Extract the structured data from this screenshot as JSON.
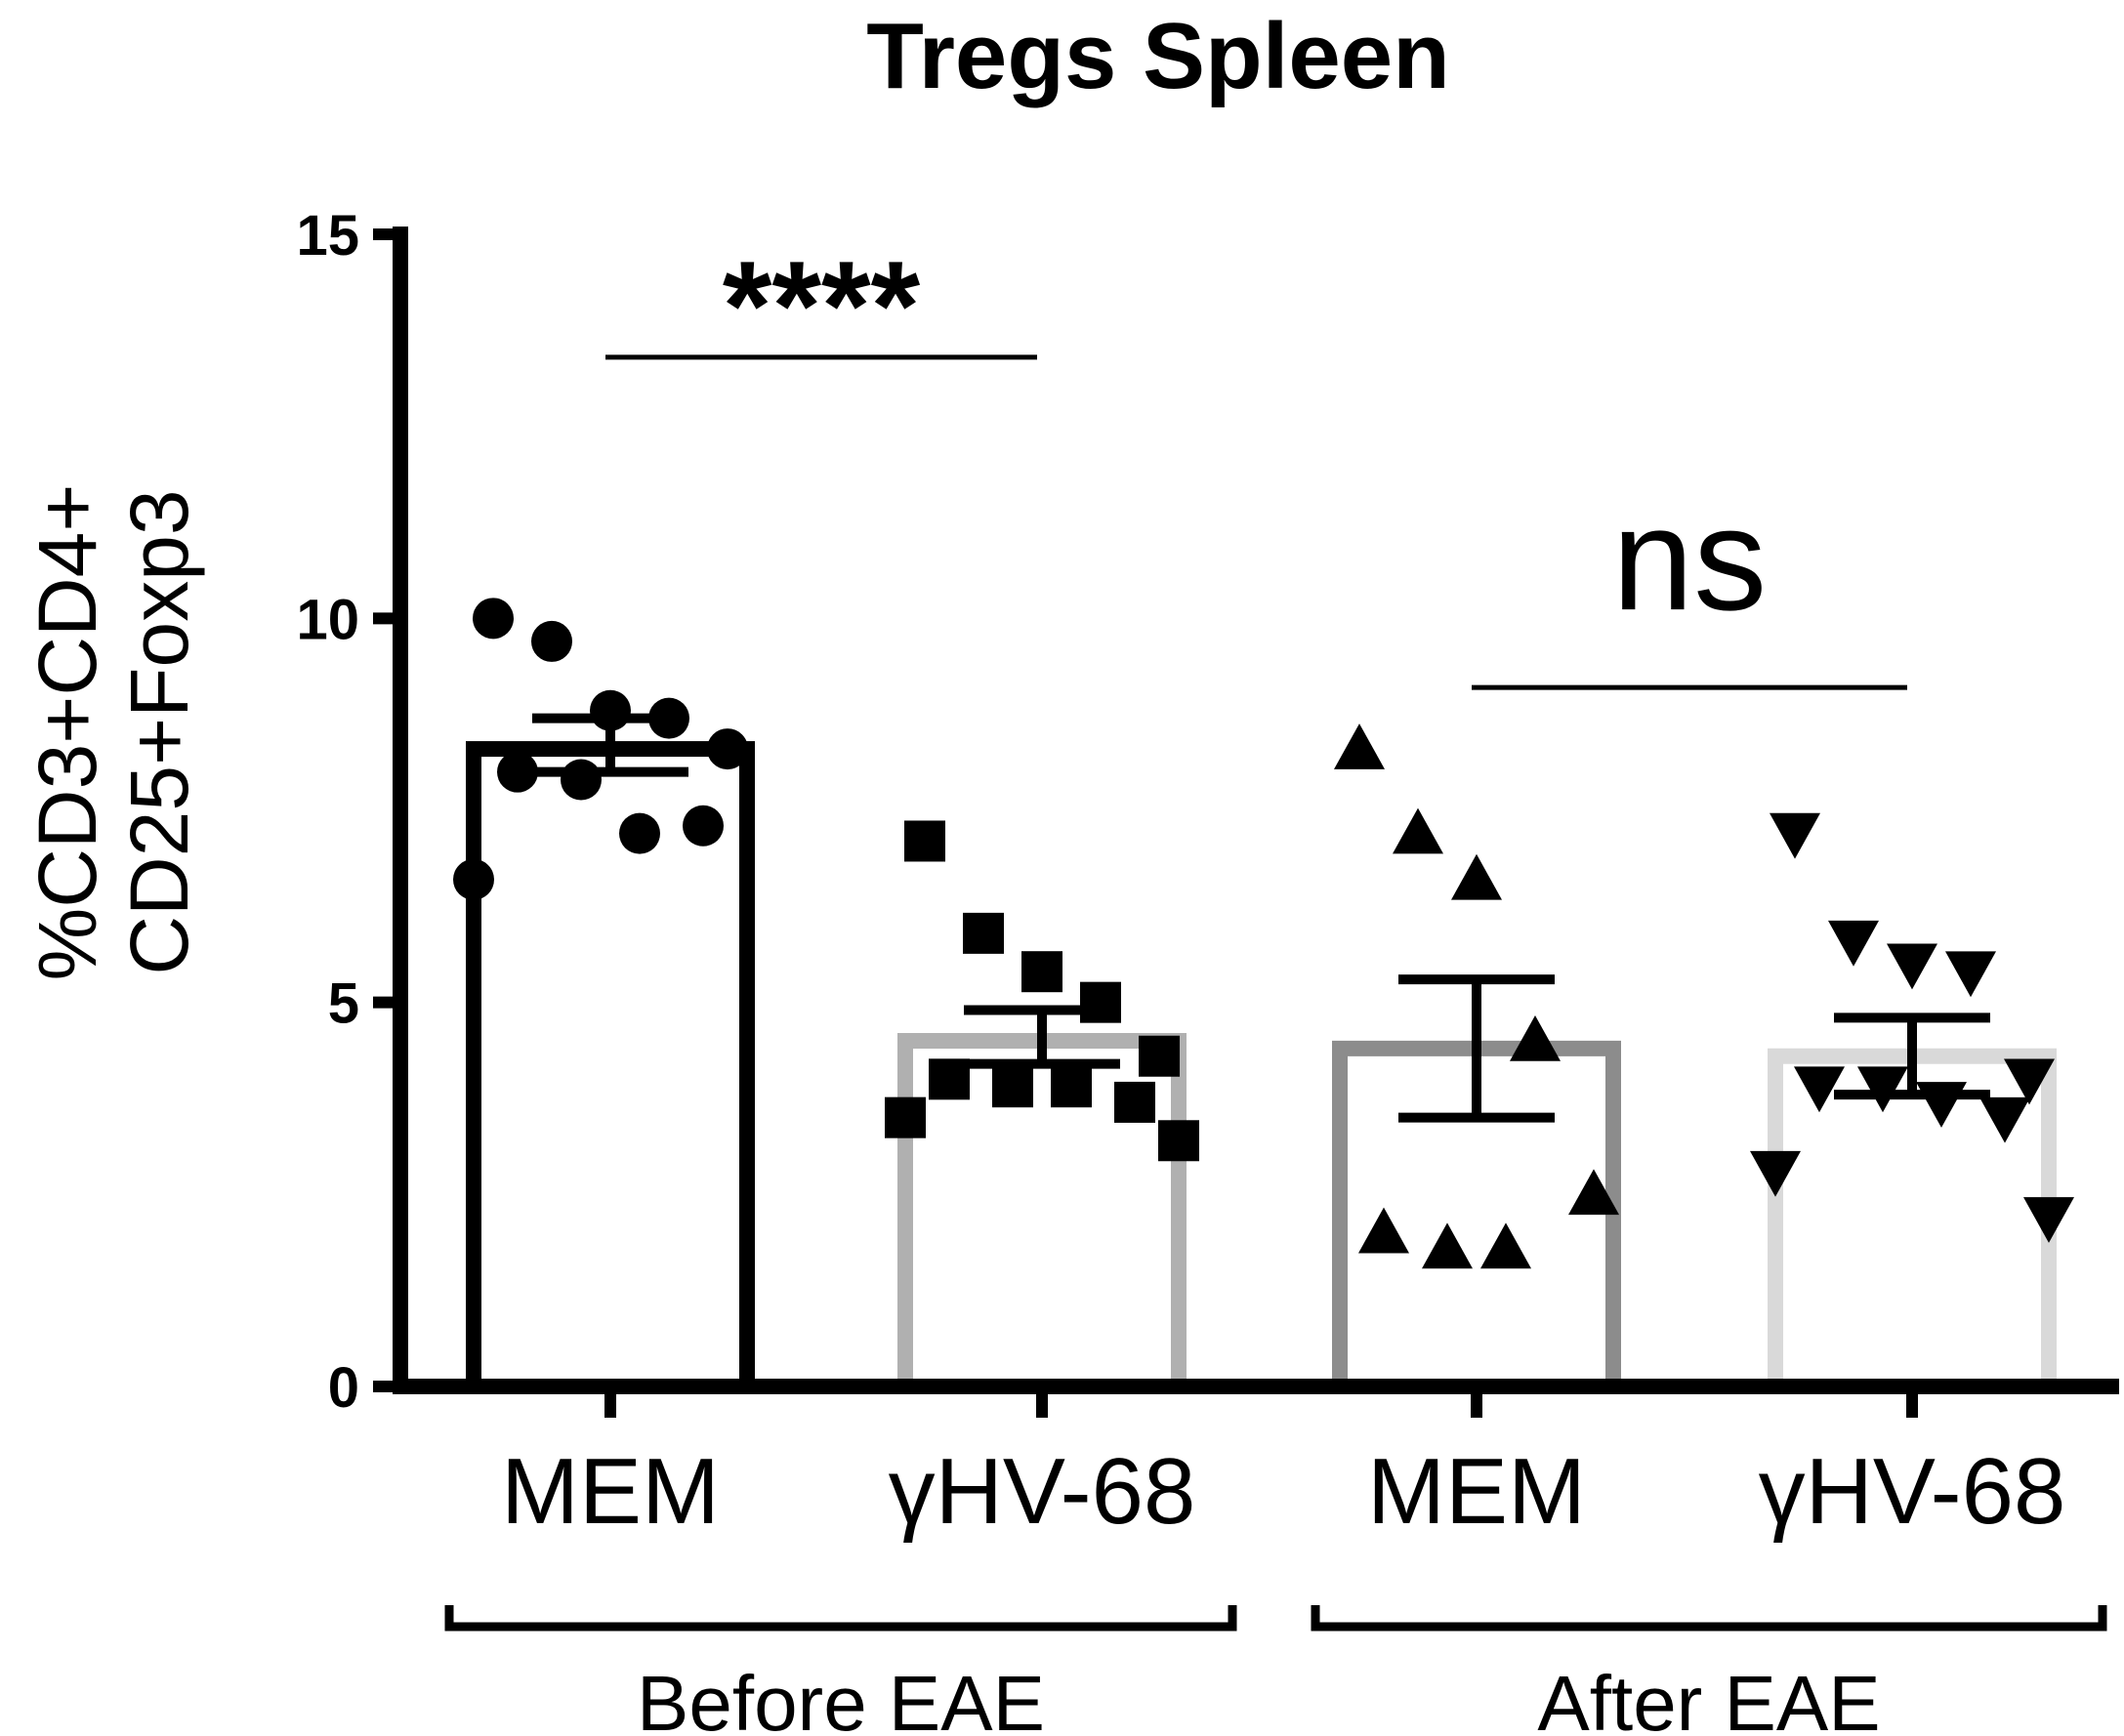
{
  "chart_data": {
    "type": "bar",
    "title": "Tregs Spleen",
    "ylabel": "%CD3+CD4+ CD25+Foxp3",
    "ylabel_lines": [
      "%CD3+CD4+",
      "CD25+Foxp3"
    ],
    "ylim": [
      0,
      15
    ],
    "yticks": [
      0,
      5,
      10,
      15
    ],
    "ytick_labels": [
      "0",
      "5",
      "10",
      "15"
    ],
    "categories": [
      "MEM",
      "γHV-68",
      "MEM",
      "γHV-68"
    ],
    "groups": [
      {
        "label": "Before EAE",
        "categories": [
          0,
          1
        ]
      },
      {
        "label": "After EAE",
        "categories": [
          2,
          3
        ]
      }
    ],
    "series": [
      {
        "category": "MEM",
        "group": "Before EAE",
        "mean": 8.3,
        "sem": [
          8.0,
          8.7
        ],
        "marker": "circle",
        "bar_color": "#000000",
        "points": [
          10.0,
          9.7,
          8.8,
          8.7,
          8.3,
          8.0,
          7.9,
          7.2,
          7.3,
          6.6
        ]
      },
      {
        "category": "γHV-68",
        "group": "Before EAE",
        "mean": 4.5,
        "sem": [
          4.2,
          4.9
        ],
        "marker": "square",
        "bar_color": "#b0b0b0",
        "points": [
          7.1,
          5.9,
          5.4,
          5.0,
          4.3,
          4.0,
          3.9,
          3.9,
          3.7,
          3.5,
          3.2
        ]
      },
      {
        "category": "MEM",
        "group": "After EAE",
        "mean": 4.4,
        "sem": [
          3.5,
          5.3
        ],
        "marker": "triangle-up",
        "bar_color": "#8c8c8c",
        "points": [
          8.3,
          7.2,
          6.6,
          4.5,
          2.5,
          2.0,
          1.8,
          1.8
        ]
      },
      {
        "category": "γHV-68",
        "group": "After EAE",
        "mean": 4.3,
        "sem": [
          3.8,
          4.8
        ],
        "marker": "triangle-down",
        "bar_color": "#d9d9d9",
        "points": [
          7.2,
          5.8,
          5.5,
          5.4,
          4.0,
          3.9,
          3.9,
          3.7,
          3.5,
          2.8,
          2.2
        ]
      }
    ],
    "annotations": [
      {
        "text": "****",
        "between": [
          0,
          1
        ],
        "y": 13.4
      },
      {
        "text": "ns",
        "between": [
          2,
          3
        ],
        "y": 9.1
      }
    ],
    "grid": false,
    "legend": "none"
  }
}
